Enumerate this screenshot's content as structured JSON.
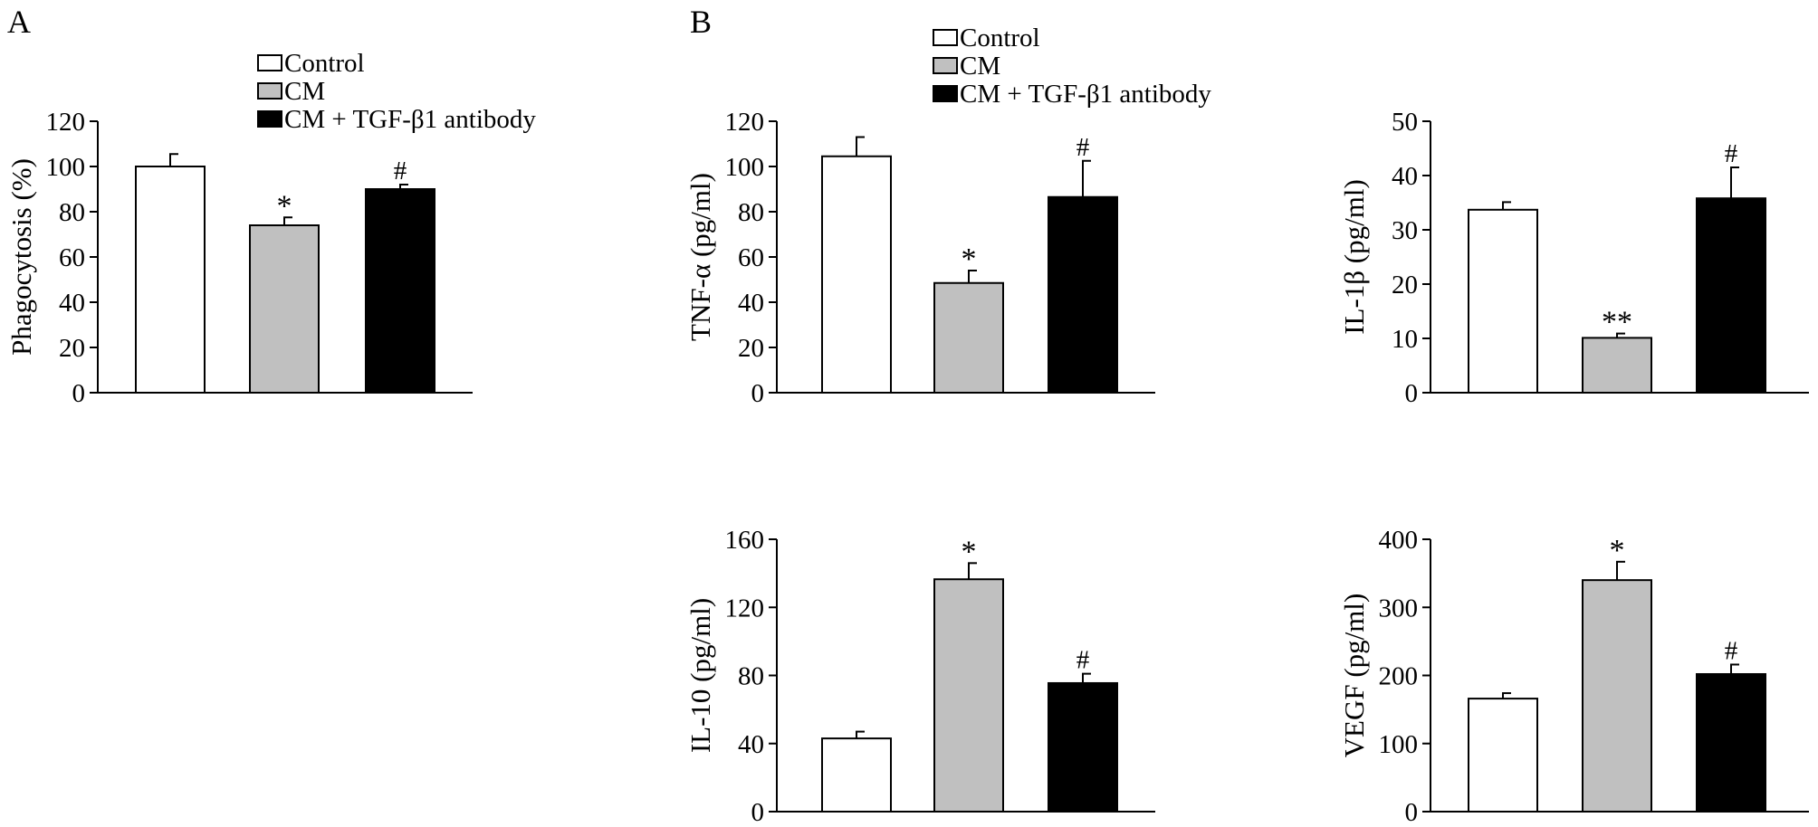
{
  "panels": {
    "a": {
      "label": "A"
    },
    "b": {
      "label": "B"
    }
  },
  "legend": {
    "items": [
      {
        "label": "Control",
        "color": "#ffffff"
      },
      {
        "label": "CM",
        "color": "#c0c0c0"
      },
      {
        "label": "CM + TGF-β1 antibody",
        "color": "#000000"
      }
    ]
  },
  "chart_data": [
    {
      "id": "phagocytosis",
      "type": "bar",
      "categories": [
        "Control",
        "CM",
        "CM + TGF-β1 antibody"
      ],
      "values": [
        100,
        74,
        90
      ],
      "errors": [
        5.5,
        3.5,
        2
      ],
      "annotations": [
        "",
        "*",
        "#"
      ],
      "colors": [
        "#ffffff",
        "#c0c0c0",
        "#000000"
      ],
      "ylabel": "Phagocytosis (%)",
      "ylim": [
        0,
        120
      ],
      "yticks": [
        0,
        20,
        40,
        60,
        80,
        100,
        120
      ],
      "grid": false
    },
    {
      "id": "tnf",
      "type": "bar",
      "categories": [
        "Control",
        "CM",
        "CM + TGF-β1 antibody"
      ],
      "values": [
        104.5,
        48.5,
        86.5
      ],
      "errors": [
        8.5,
        5.5,
        16
      ],
      "annotations": [
        "",
        "*",
        "#"
      ],
      "colors": [
        "#ffffff",
        "#c0c0c0",
        "#000000"
      ],
      "ylabel": "TNF-α (pg/ml)",
      "ylim": [
        0,
        120
      ],
      "yticks": [
        0,
        20,
        40,
        60,
        80,
        100,
        120
      ],
      "grid": false
    },
    {
      "id": "il1b",
      "type": "bar",
      "categories": [
        "Control",
        "CM",
        "CM + TGF-β1 antibody"
      ],
      "values": [
        33.7,
        10.1,
        35.8
      ],
      "errors": [
        1.4,
        0.8,
        5.7
      ],
      "annotations": [
        "",
        "**",
        "#"
      ],
      "colors": [
        "#ffffff",
        "#c0c0c0",
        "#000000"
      ],
      "ylabel": "IL-1β (pg/ml)",
      "ylim": [
        0,
        50
      ],
      "yticks": [
        0,
        10,
        20,
        30,
        40,
        50
      ],
      "grid": false
    },
    {
      "id": "il10",
      "type": "bar",
      "categories": [
        "Control",
        "CM",
        "CM + TGF-β1 antibody"
      ],
      "values": [
        43,
        136.5,
        75.5
      ],
      "errors": [
        4,
        9.5,
        5.5
      ],
      "annotations": [
        "",
        "*",
        "#"
      ],
      "colors": [
        "#ffffff",
        "#c0c0c0",
        "#000000"
      ],
      "ylabel": "IL-10 (pg/ml)",
      "ylim": [
        0,
        160
      ],
      "yticks": [
        0,
        40,
        80,
        120,
        160
      ],
      "grid": false
    },
    {
      "id": "vegf",
      "type": "bar",
      "categories": [
        "Control",
        "CM",
        "CM + TGF-β1 antibody"
      ],
      "values": [
        166,
        340,
        202
      ],
      "errors": [
        8,
        27,
        14
      ],
      "annotations": [
        "",
        "*",
        "#"
      ],
      "colors": [
        "#ffffff",
        "#c0c0c0",
        "#000000"
      ],
      "ylabel": "VEGF (pg/ml)",
      "ylim": [
        0,
        400
      ],
      "yticks": [
        0,
        100,
        200,
        300,
        400
      ],
      "grid": false
    }
  ]
}
